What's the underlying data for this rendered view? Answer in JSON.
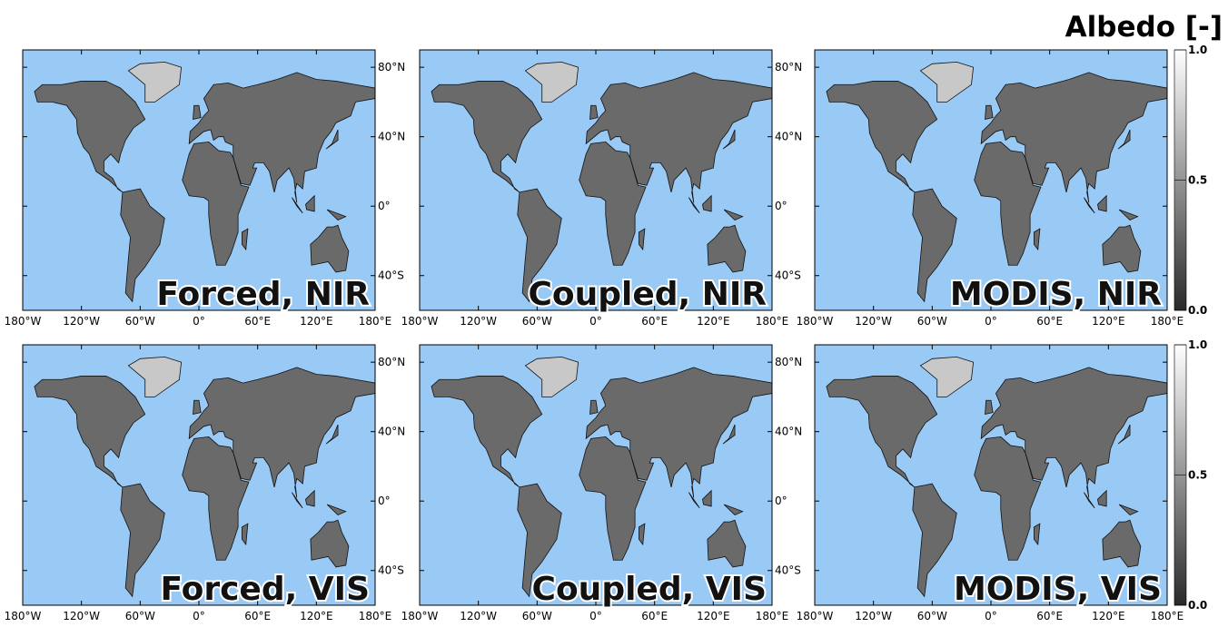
{
  "title": "Albedo [-]",
  "panels": [
    {
      "label": "Forced, NIR"
    },
    {
      "label": "Coupled, NIR"
    },
    {
      "label": "MODIS, NIR"
    },
    {
      "label": "Forced, VIS"
    },
    {
      "label": "Coupled, VIS"
    },
    {
      "label": "MODIS, VIS"
    }
  ],
  "lon_range": [
    -180,
    180
  ],
  "lat_range": [
    -60,
    90
  ],
  "lon_ticks": [
    {
      "value": -180,
      "label": "180°W"
    },
    {
      "value": -120,
      "label": "120°W"
    },
    {
      "value": -60,
      "label": "60°W"
    },
    {
      "value": 0,
      "label": "0°"
    },
    {
      "value": 60,
      "label": "60°E"
    },
    {
      "value": 120,
      "label": "120°E"
    },
    {
      "value": 180,
      "label": "180°E"
    }
  ],
  "lat_ticks": [
    {
      "value": 80,
      "label": "80°N"
    },
    {
      "value": 40,
      "label": "40°N"
    },
    {
      "value": 0,
      "label": "0°"
    },
    {
      "value": -40,
      "label": "40°S"
    }
  ],
  "colorbar": {
    "range": [
      0,
      1
    ],
    "ticks": [
      {
        "value": 0,
        "label": "0.0"
      },
      {
        "value": 0.5,
        "label": "0.5"
      },
      {
        "value": 1,
        "label": "1.0"
      }
    ]
  }
}
